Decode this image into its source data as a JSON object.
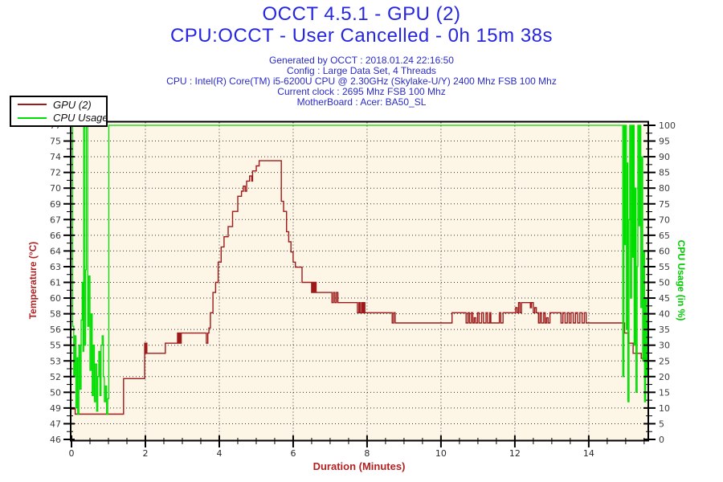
{
  "header": {
    "title1": "OCCT 4.5.1 - GPU (2)",
    "title2": "CPU:OCCT - User Cancelled - 0h 15m 38s",
    "info_lines": [
      "Generated by OCCT : 2018.01.24 22:16:50",
      "Config : Large Data Set, 4 Threads",
      "CPU : Intel(R) Core(TM) i5-6200U CPU @ 2.30GHz (Skylake-U/Y) 2400 Mhz FSB 100 Mhz",
      "Current clock : 2695 Mhz FSB 100 Mhz",
      "MotherBoard : Acer: BA50_SL"
    ],
    "title_color": "#2626E0",
    "info_color": "#2A2AC8"
  },
  "legend": {
    "items": [
      {
        "label": "GPU (2)",
        "color": "#9E1A1A"
      },
      {
        "label": "CPU Usage",
        "color": "#00DD00"
      }
    ]
  },
  "chart_data": {
    "type": "line",
    "title": "OCCT 4.5.1 - GPU (2)",
    "plot_bg": "#FDF5E6",
    "grid": "dotted",
    "grid_color": "#333333",
    "frame_color": "#000000",
    "tick_label_color": "#3C3C3C",
    "x_axis": {
      "label": "Duration (Minutes)",
      "min": 0,
      "max": 15.59,
      "major_tick_labels": [
        "0",
        "2",
        "4",
        "6",
        "8",
        "10",
        "12",
        "14"
      ],
      "major_tick_values": [
        0,
        2,
        4,
        6,
        8,
        10,
        12,
        14
      ],
      "minor_tick_step": 0.5
    },
    "y_left": {
      "label": "Temperature (°C)",
      "label_color": "#B22222",
      "value_min": 46,
      "value_max": 77,
      "tick_labels_top_to_bottom": [
        "77",
        "75",
        "74",
        "72",
        "70",
        "69",
        "67",
        "66",
        "64",
        "63",
        "61",
        "60",
        "58",
        "56",
        "55",
        "53",
        "52",
        "50",
        "49",
        "47",
        "46"
      ]
    },
    "y_right": {
      "label": "CPU Usage (in %)",
      "label_color": "#00CC00",
      "value_min": 0,
      "value_max": 100,
      "tick_labels_top_to_bottom": [
        "100",
        "95",
        "90",
        "85",
        "80",
        "75",
        "70",
        "65",
        "60",
        "55",
        "50",
        "45",
        "40",
        "35",
        "30",
        "25",
        "20",
        "15",
        "10",
        "5",
        "0"
      ]
    },
    "series": [
      {
        "name": "GPU (2)",
        "axis": "left",
        "color": "#9E1A1A",
        "points": [
          [
            0,
            49
          ],
          [
            0.1,
            48.5
          ],
          [
            1.41,
            52
          ],
          [
            1.98,
            55.5
          ],
          [
            2.0,
            54.5
          ],
          [
            2.02,
            55.5
          ],
          [
            2.04,
            54.5
          ],
          [
            2.54,
            55.5
          ],
          [
            2.87,
            56.5
          ],
          [
            2.89,
            55.5
          ],
          [
            2.92,
            56.5
          ],
          [
            2.94,
            55.5
          ],
          [
            2.97,
            56.5
          ],
          [
            3.65,
            55.5
          ],
          [
            3.69,
            56.5
          ],
          [
            3.72,
            57
          ],
          [
            3.76,
            58.5
          ],
          [
            3.83,
            60.5
          ],
          [
            3.9,
            61.5
          ],
          [
            3.97,
            63.5
          ],
          [
            4.05,
            65
          ],
          [
            4.13,
            66
          ],
          [
            4.24,
            67
          ],
          [
            4.36,
            68.5
          ],
          [
            4.5,
            70
          ],
          [
            4.6,
            70.5
          ],
          [
            4.65,
            71
          ],
          [
            4.7,
            70.5
          ],
          [
            4.74,
            71.5
          ],
          [
            4.82,
            72
          ],
          [
            4.88,
            71.5
          ],
          [
            4.9,
            72.5
          ],
          [
            5.0,
            73
          ],
          [
            5.08,
            73.5
          ],
          [
            5.68,
            69.5
          ],
          [
            5.74,
            68.5
          ],
          [
            5.82,
            66.5
          ],
          [
            5.88,
            65.5
          ],
          [
            5.94,
            64.5
          ],
          [
            6.0,
            63.5
          ],
          [
            6.06,
            63
          ],
          [
            6.24,
            61.5
          ],
          [
            6.5,
            60.5
          ],
          [
            6.53,
            61.5
          ],
          [
            6.56,
            60.5
          ],
          [
            6.59,
            61.5
          ],
          [
            6.62,
            60.5
          ],
          [
            7.05,
            59.5
          ],
          [
            7.09,
            60.5
          ],
          [
            7.13,
            59.5
          ],
          [
            7.17,
            60.5
          ],
          [
            7.21,
            59.5
          ],
          [
            7.74,
            58.5
          ],
          [
            7.78,
            59.5
          ],
          [
            7.81,
            58.5
          ],
          [
            7.85,
            59.5
          ],
          [
            7.88,
            58.5
          ],
          [
            7.91,
            59.5
          ],
          [
            7.94,
            58.5
          ],
          [
            8.68,
            57.5
          ],
          [
            8.72,
            58.5
          ],
          [
            8.76,
            57.5
          ],
          [
            10.3,
            58.5
          ],
          [
            10.68,
            57.5
          ],
          [
            10.73,
            58.5
          ],
          [
            10.77,
            57.5
          ],
          [
            10.82,
            58.5
          ],
          [
            10.86,
            57.5
          ],
          [
            10.9,
            58
          ],
          [
            10.94,
            57.5
          ],
          [
            10.99,
            58.5
          ],
          [
            11.03,
            57.5
          ],
          [
            11.1,
            58.5
          ],
          [
            11.15,
            57.5
          ],
          [
            11.22,
            58.5
          ],
          [
            11.26,
            57.5
          ],
          [
            11.32,
            58.5
          ],
          [
            11.35,
            57.5
          ],
          [
            11.58,
            58.5
          ],
          [
            11.62,
            57.5
          ],
          [
            11.68,
            58.5
          ],
          [
            12.02,
            59
          ],
          [
            12.06,
            58.5
          ],
          [
            12.1,
            59.5
          ],
          [
            12.14,
            58.5
          ],
          [
            12.18,
            59.5
          ],
          [
            12.42,
            59
          ],
          [
            12.45,
            59.5
          ],
          [
            12.5,
            58.5
          ],
          [
            12.54,
            59
          ],
          [
            12.58,
            58.5
          ],
          [
            12.64,
            57.5
          ],
          [
            12.68,
            58.5
          ],
          [
            12.72,
            57.5
          ],
          [
            12.78,
            58.5
          ],
          [
            12.82,
            57.5
          ],
          [
            12.86,
            58
          ],
          [
            12.9,
            57.5
          ],
          [
            12.95,
            58.5
          ],
          [
            13.25,
            57.5
          ],
          [
            13.3,
            58.5
          ],
          [
            13.36,
            57.5
          ],
          [
            13.42,
            58.5
          ],
          [
            13.47,
            57.5
          ],
          [
            13.52,
            58.5
          ],
          [
            13.58,
            57.5
          ],
          [
            13.64,
            58.5
          ],
          [
            13.7,
            57.5
          ],
          [
            13.76,
            58.5
          ],
          [
            13.82,
            57.5
          ],
          [
            13.88,
            58.5
          ],
          [
            13.93,
            57.5
          ],
          [
            14.97,
            56.5
          ],
          [
            15.08,
            55.5
          ],
          [
            15.2,
            54.5
          ],
          [
            15.42,
            54
          ],
          [
            15.59,
            54
          ]
        ]
      },
      {
        "name": "CPU Usage",
        "axis": "right",
        "color": "#00DD00",
        "points": [
          [
            0,
            100
          ],
          [
            0.03,
            36
          ],
          [
            0.06,
            20
          ],
          [
            0.09,
            33
          ],
          [
            0.12,
            10
          ],
          [
            0.15,
            26
          ],
          [
            0.17,
            8
          ],
          [
            0.2,
            30
          ],
          [
            0.23,
            16
          ],
          [
            0.26,
            38
          ],
          [
            0.29,
            50
          ],
          [
            0.31,
            28
          ],
          [
            0.33,
            100
          ],
          [
            0.35,
            30
          ],
          [
            0.38,
            54
          ],
          [
            0.4,
            100
          ],
          [
            0.44,
            36
          ],
          [
            0.47,
            52
          ],
          [
            0.5,
            22
          ],
          [
            0.53,
            40
          ],
          [
            0.56,
            14
          ],
          [
            0.59,
            30
          ],
          [
            0.62,
            12
          ],
          [
            0.65,
            24
          ],
          [
            0.68,
            9
          ],
          [
            0.71,
            20
          ],
          [
            0.74,
            28
          ],
          [
            0.77,
            14
          ],
          [
            0.8,
            30
          ],
          [
            0.83,
            33
          ],
          [
            0.86,
            20
          ],
          [
            0.89,
            12
          ],
          [
            0.92,
            17
          ],
          [
            0.95,
            8
          ],
          [
            0.98,
            13
          ],
          [
            1.01,
            100
          ],
          [
            14.9,
            100
          ],
          [
            14.92,
            20
          ],
          [
            14.95,
            100
          ],
          [
            14.97,
            62
          ],
          [
            14.99,
            100
          ],
          [
            15.02,
            35
          ],
          [
            15.04,
            88
          ],
          [
            15.06,
            12
          ],
          [
            15.09,
            70
          ],
          [
            15.11,
            100
          ],
          [
            15.13,
            45
          ],
          [
            15.16,
            100
          ],
          [
            15.18,
            58
          ],
          [
            15.2,
            100
          ],
          [
            15.23,
            30
          ],
          [
            15.25,
            80
          ],
          [
            15.28,
            15
          ],
          [
            15.31,
            55
          ],
          [
            15.33,
            100
          ],
          [
            15.36,
            68
          ],
          [
            15.38,
            100
          ],
          [
            15.41,
            42
          ],
          [
            15.44,
            90
          ],
          [
            15.46,
            25
          ],
          [
            15.49,
            60
          ],
          [
            15.51,
            12
          ],
          [
            15.54,
            45
          ],
          [
            15.57,
            20
          ],
          [
            15.59,
            38
          ]
        ]
      }
    ]
  }
}
